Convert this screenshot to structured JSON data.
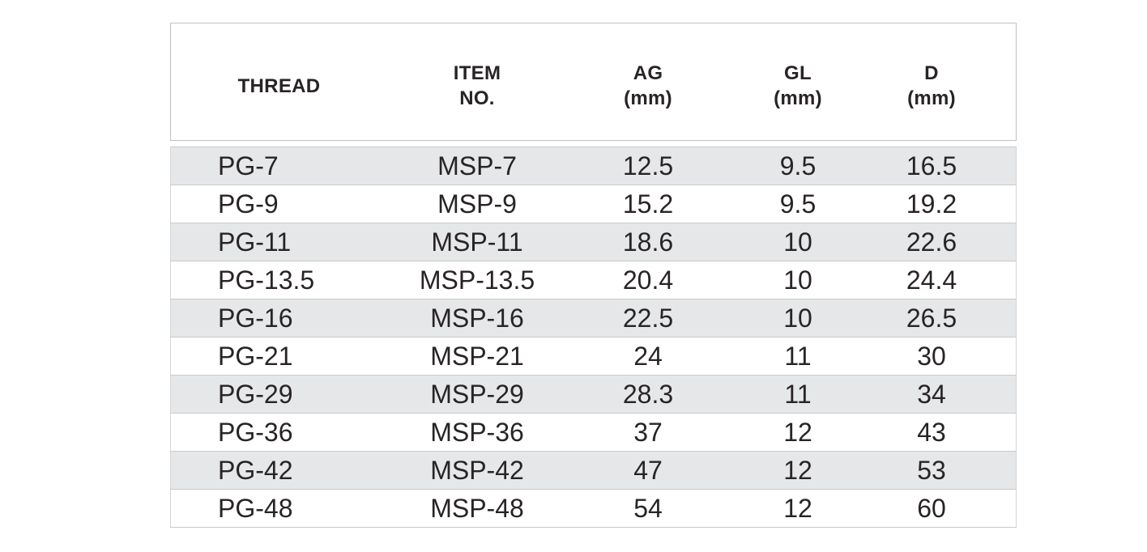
{
  "table": {
    "columns": [
      {
        "id": "thread",
        "line1": "THREAD",
        "line2": ""
      },
      {
        "id": "item-no",
        "line1": "ITEM",
        "line2": "NO."
      },
      {
        "id": "ag",
        "line1": "AG",
        "line2": "(mm)"
      },
      {
        "id": "gl",
        "line1": "GL",
        "line2": "(mm)"
      },
      {
        "id": "d",
        "line1": "D",
        "line2": "(mm)"
      }
    ],
    "rows": [
      [
        "PG-7",
        "MSP-7",
        "12.5",
        "9.5",
        "16.5"
      ],
      [
        "PG-9",
        "MSP-9",
        "15.2",
        "9.5",
        "19.2"
      ],
      [
        "PG-11",
        "MSP-11",
        "18.6",
        "10",
        "22.6"
      ],
      [
        "PG-13.5",
        "MSP-13.5",
        "20.4",
        "10",
        "24.4"
      ],
      [
        "PG-16",
        "MSP-16",
        "22.5",
        "10",
        "26.5"
      ],
      [
        "PG-21",
        "MSP-21",
        "24",
        "11",
        "30"
      ],
      [
        "PG-29",
        "MSP-29",
        "28.3",
        "11",
        "34"
      ],
      [
        "PG-36",
        "MSP-36",
        "37",
        "12",
        "43"
      ],
      [
        "PG-42",
        "MSP-42",
        "47",
        "12",
        "53"
      ],
      [
        "PG-48",
        "MSP-48",
        "54",
        "12",
        "60"
      ]
    ]
  },
  "colors": {
    "background": "#ffffff",
    "row_stripe": "#e6e7e8",
    "row_border": "#c9cacb",
    "header_border": "#c0c1c3",
    "text": "#282425"
  }
}
